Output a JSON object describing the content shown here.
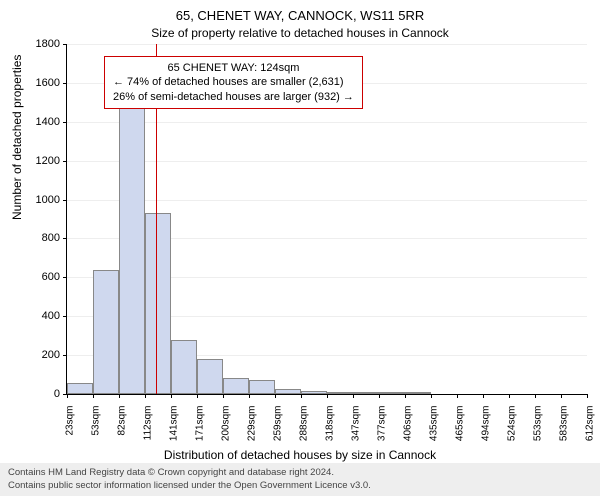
{
  "title_main": "65, CHENET WAY, CANNOCK, WS11 5RR",
  "title_sub": "Size of property relative to detached houses in Cannock",
  "ylabel": "Number of detached properties",
  "xlabel": "Distribution of detached houses by size in Cannock",
  "chart": {
    "type": "histogram",
    "ylim": [
      0,
      1800
    ],
    "ytick_step": 200,
    "yticks": [
      0,
      200,
      400,
      600,
      800,
      1000,
      1200,
      1400,
      1600,
      1800
    ],
    "xtick_labels": [
      "23sqm",
      "53sqm",
      "82sqm",
      "112sqm",
      "141sqm",
      "171sqm",
      "200sqm",
      "229sqm",
      "259sqm",
      "288sqm",
      "318sqm",
      "347sqm",
      "377sqm",
      "406sqm",
      "435sqm",
      "465sqm",
      "494sqm",
      "524sqm",
      "553sqm",
      "583sqm",
      "612sqm"
    ],
    "bar_color": "#cfd8ee",
    "bar_border": "#888888",
    "grid_color": "#eeeeee",
    "background_color": "#ffffff",
    "values": [
      55,
      640,
      1470,
      930,
      280,
      180,
      80,
      70,
      25,
      15,
      12,
      10,
      10,
      8,
      0,
      0,
      0,
      0,
      0,
      0
    ],
    "reference_line": {
      "value_sqm": 124,
      "color": "#cc0000"
    },
    "annotation": {
      "border_color": "#cc0000",
      "lines": [
        "65 CHENET WAY: 124sqm",
        "← 74% of detached houses are smaller (2,631)",
        "26% of semi-detached houses are larger (932) →"
      ]
    }
  },
  "footer": {
    "line1": "Contains HM Land Registry data © Crown copyright and database right 2024.",
    "line2": "Contains public sector information licensed under the Open Government Licence v3.0.",
    "bg": "#eeeeee"
  }
}
